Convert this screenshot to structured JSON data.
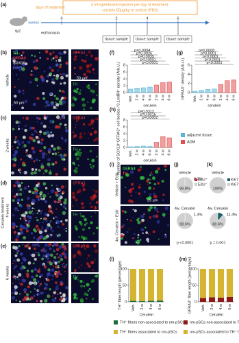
{
  "panel_a": {
    "label": "(a)",
    "mouse": "WT",
    "days_label": "days of treatment",
    "treatment": "6 intraperitoneal injection per day of treatment:",
    "treatment2": "cerulein 50µg/kg or vehicle (PBS)",
    "weeks_label": "weeks",
    "euthanasia": "euthanasia",
    "week_ticks": [
      "0",
      "2",
      "4",
      "6"
    ],
    "samples": [
      "tissue sample",
      "tissue sample",
      "tissue sample"
    ]
  },
  "images": {
    "labels": [
      "(b)",
      "(c)",
      "(d)",
      "(e)"
    ],
    "rows": [
      "Vehicle",
      "2 weeks",
      "4 weeks",
      "6 weeks"
    ],
    "treatment": "Cerulein treatment",
    "stains": [
      "TH",
      "GFRA3",
      "SOX10",
      "DAPI"
    ],
    "inset_top": "GFRA3",
    "inset_bottom": "TH",
    "scale_a": "50 µm",
    "scale_b": "50 µm"
  },
  "panel_i": {
    "label": "(i)",
    "rows": [
      "Vehicle + EdU",
      "4w. Cerulein + EdU"
    ],
    "stains": [
      "GFRA3",
      "TH"
    ],
    "scale": "25 µm"
  },
  "chart_data": [
    {
      "type": "bar",
      "label": "(f)",
      "ylabel": "TH⁺ density (Arb.U.)",
      "xlabel": "cerulein",
      "categories": [
        "Veh.",
        "2 w",
        "4 w",
        "6 w",
        "2 w",
        "4 w",
        "6 w"
      ],
      "series": [
        {
          "color": "#5ab4d6",
          "values": [
            1.0,
            1.3,
            1.4,
            1.6,
            null,
            null,
            null
          ]
        },
        {
          "color": "#e05050",
          "values": [
            null,
            null,
            null,
            null,
            2.2,
            2.9,
            3.1
          ]
        }
      ],
      "ylim": [
        0,
        8
      ],
      "yticks": [
        0,
        2,
        4,
        6,
        8
      ],
      "annotations": [
        "p<0.0001",
        "p<0.0001",
        "p=0.0035",
        "p=0.0026",
        "p=0.0004"
      ]
    },
    {
      "type": "bar",
      "label": "(g)",
      "ylabel": "GFRA3⁺ density (Arb.U.)",
      "xlabel": "cerulein",
      "categories": [
        "Veh.",
        "2 w",
        "4 w",
        "6 w",
        "2 w",
        "4 w",
        "6 w"
      ],
      "series": [
        {
          "color": "#5ab4d6",
          "values": [
            0.3,
            0.5,
            0.7,
            0.8,
            null,
            null,
            null
          ]
        },
        {
          "color": "#e05050",
          "values": [
            null,
            null,
            null,
            null,
            1.8,
            2.6,
            2.8
          ]
        }
      ],
      "ylim": [
        0,
        6
      ],
      "yticks": [
        0,
        2,
        4,
        6
      ],
      "annotations": [
        "p<0.0001",
        "p<0.0001",
        "p<0.0001",
        "p=0.0001",
        "p=0.0008"
      ]
    },
    {
      "type": "bar",
      "label": "(h)",
      "ylabel": "Number of SOX10⁺GFRA3⁺ cell bodies / 0.1mm²",
      "xlabel": "cerulein",
      "categories": [
        "Veh.",
        "2 w",
        "4 w",
        "6 w",
        "2 w",
        "4 w",
        "6 w"
      ],
      "series": [
        {
          "name": "adjacent tissue",
          "color": "#5ab4d6",
          "values": [
            0.2,
            0.3,
            0.4,
            0.3,
            null,
            null,
            null
          ]
        },
        {
          "name": "ADM",
          "color": "#e05050",
          "values": [
            null,
            null,
            null,
            null,
            1.5,
            3.2,
            2.8
          ]
        }
      ],
      "ylim": [
        0,
        8
      ],
      "yticks": [
        0,
        2,
        4,
        6,
        8
      ],
      "annotations": [
        "p=0.0002",
        "p=0.0016",
        "p=0.0312"
      ]
    },
    {
      "type": "pie",
      "label": "(j)",
      "series_names": [
        "EdU⁺",
        "EdU⁻"
      ],
      "colors": [
        "#c0304a",
        "#d0d0d0"
      ],
      "pies": [
        {
          "title": "Vehicle",
          "values": [
            0.2,
            99.8
          ],
          "value_labels": [
            "0.2%",
            "99.8%"
          ]
        },
        {
          "title": "4w. Cerulein",
          "values": [
            1.4,
            98.6
          ],
          "value_labels": [
            "1.4%",
            "98.6%"
          ]
        }
      ],
      "p_value": "p <0.0001"
    },
    {
      "type": "pie",
      "label": "(k)",
      "series_names": [
        "Ki67⁺",
        "Ki67⁻"
      ],
      "colors": [
        "#1a5f6a",
        "#d0d0d0"
      ],
      "pies": [
        {
          "title": "Vehicle",
          "values": [
            0,
            100
          ],
          "value_labels": [
            null,
            "100%"
          ]
        },
        {
          "title": "4w. Cerulein",
          "values": [
            11.4,
            88.6
          ],
          "value_labels": [
            "11.4%",
            "88.6%"
          ]
        }
      ],
      "p_value": "p = 0.001"
    },
    {
      "type": "stacked_bar",
      "label": "(l)",
      "ylabel": "TH⁺ fiber length (percentage)",
      "xlabel": "Cerulein",
      "categories": [
        "Veh.",
        "2 w",
        "4 w",
        "6 w"
      ],
      "series": [
        {
          "name": "TH⁺ fibers non-associated to nm-pSCs",
          "color": "#1f6b3a",
          "values": [
            3,
            2,
            3,
            4
          ]
        },
        {
          "name": "TH⁺ fibers associated to nm-pSCs",
          "color": "#d4b430",
          "values": [
            97,
            98,
            97,
            96
          ]
        }
      ],
      "ylim": [
        0,
        100
      ],
      "yticks": [
        0,
        50,
        100
      ]
    },
    {
      "type": "stacked_bar",
      "label": "(m)",
      "ylabel": "GFRA3⁺ fiber length (percentage)",
      "xlabel": "Cerulein",
      "categories": [
        "Veh.",
        "2 w",
        "4 w",
        "6 w"
      ],
      "series": [
        {
          "name": "nm-pSCs non-associated to TH⁺ fibers",
          "color": "#8b1a1a",
          "values": [
            12,
            14,
            13,
            15
          ]
        },
        {
          "name": "nm-pSCs associated to TH⁺ fibers",
          "color": "#d4b430",
          "values": [
            88,
            86,
            87,
            85
          ]
        }
      ],
      "ylim": [
        0,
        100
      ],
      "yticks": [
        0,
        50,
        100
      ]
    }
  ]
}
